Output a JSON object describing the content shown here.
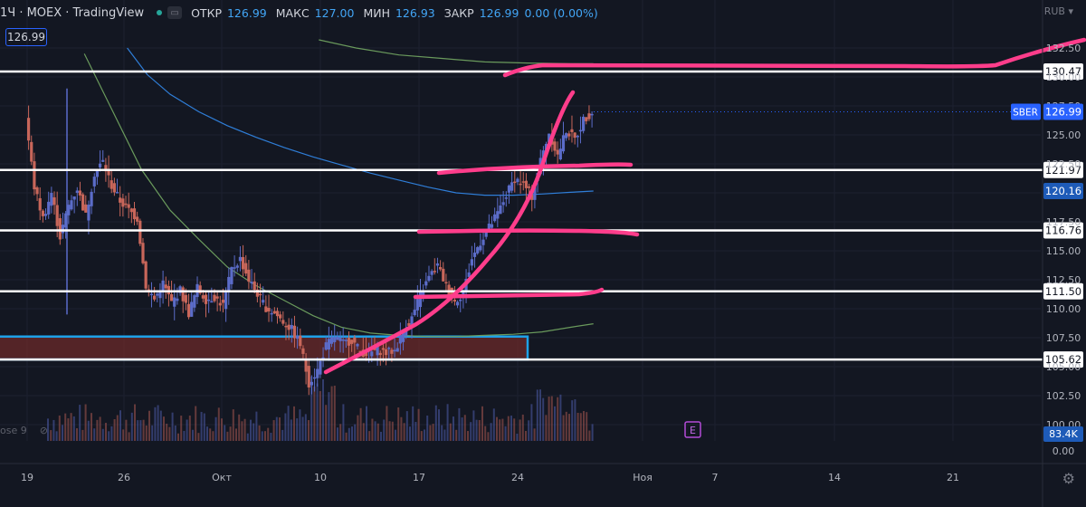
{
  "header": {
    "symbol_fragment": "1Ч · MOEX · TradingView",
    "open_label": "ОТКР",
    "open": "126.99",
    "high_label": "МАКС",
    "high": "127.00",
    "low_label": "МИН",
    "low": "126.93",
    "close_label": "ЗАКР",
    "close": "126.99",
    "change": "0.00 (0.00%)",
    "current_price": "126.99",
    "currency": "RUB"
  },
  "volume_label": "ose 9",
  "colors": {
    "background": "#131722",
    "up": "#5b6cc9",
    "down": "#c8665a",
    "ma_blue": "#2f7ed8",
    "ma_green": "#6a9a5c",
    "level_line": "#ffffff",
    "drawing_pink": "#ff3d8b",
    "zone_border": "#1ea2e8",
    "zone_fill": "#6b2a2a"
  },
  "chart_data": {
    "type": "line",
    "title": "",
    "y_axis": {
      "ylim": [
        100,
        132
      ],
      "ticks": [
        100.0,
        102.5,
        105.0,
        107.5,
        110.0,
        112.5,
        115.0,
        117.5,
        120.0,
        122.5,
        125.0,
        127.5,
        130.0,
        132.5
      ],
      "tick_labels": [
        "100.00",
        "102.50",
        "105.00",
        "107.50",
        "110.00",
        "112.50",
        "115.00",
        "117.50",
        "120.00",
        "122.50",
        "125.00",
        "127.50",
        "130.00",
        "132.50"
      ],
      "volume_zero_label": "0.00"
    },
    "x_axis": {
      "tick_labels": [
        "19",
        "26",
        "Окт",
        "10",
        "17",
        "24",
        "Ноя",
        "7",
        "14",
        "21"
      ]
    },
    "price_series": [
      {
        "t": 0.0,
        "v": 126.5
      },
      {
        "t": 0.3,
        "v": 120.5
      },
      {
        "t": 0.6,
        "v": 117.8
      },
      {
        "t": 0.9,
        "v": 120.0
      },
      {
        "t": 1.2,
        "v": 116.2
      },
      {
        "t": 1.5,
        "v": 118.9
      },
      {
        "t": 1.8,
        "v": 120.4
      },
      {
        "t": 2.1,
        "v": 118.0
      },
      {
        "t": 2.4,
        "v": 121.7
      },
      {
        "t": 2.7,
        "v": 122.7
      },
      {
        "t": 3.0,
        "v": 120.6
      },
      {
        "t": 3.3,
        "v": 119.3
      },
      {
        "t": 3.6,
        "v": 118.5
      },
      {
        "t": 3.9,
        "v": 117.8
      },
      {
        "t": 4.2,
        "v": 112.0
      },
      {
        "t": 4.5,
        "v": 110.8
      },
      {
        "t": 4.8,
        "v": 112.2
      },
      {
        "t": 5.1,
        "v": 110.5
      },
      {
        "t": 5.4,
        "v": 111.6
      },
      {
        "t": 5.7,
        "v": 109.6
      },
      {
        "t": 6.0,
        "v": 111.8
      },
      {
        "t": 6.3,
        "v": 110.8
      },
      {
        "t": 6.6,
        "v": 111.0
      },
      {
        "t": 6.9,
        "v": 110.3
      },
      {
        "t": 7.2,
        "v": 113.4
      },
      {
        "t": 7.5,
        "v": 114.3
      },
      {
        "t": 7.8,
        "v": 112.5
      },
      {
        "t": 8.1,
        "v": 111.3
      },
      {
        "t": 8.4,
        "v": 110.1
      },
      {
        "t": 8.7,
        "v": 109.6
      },
      {
        "t": 9.0,
        "v": 108.9
      },
      {
        "t": 9.3,
        "v": 108.2
      },
      {
        "t": 9.6,
        "v": 106.9
      },
      {
        "t": 9.9,
        "v": 103.6
      },
      {
        "t": 10.2,
        "v": 104.7
      },
      {
        "t": 10.5,
        "v": 106.8
      },
      {
        "t": 10.8,
        "v": 107.6
      },
      {
        "t": 11.1,
        "v": 107.0
      },
      {
        "t": 11.4,
        "v": 107.3
      },
      {
        "t": 11.7,
        "v": 106.3
      },
      {
        "t": 12.0,
        "v": 106.1
      },
      {
        "t": 12.3,
        "v": 106.5
      },
      {
        "t": 12.6,
        "v": 106.2
      },
      {
        "t": 12.9,
        "v": 106.4
      },
      {
        "t": 13.2,
        "v": 108.0
      },
      {
        "t": 13.5,
        "v": 109.2
      },
      {
        "t": 13.8,
        "v": 111.2
      },
      {
        "t": 14.1,
        "v": 112.7
      },
      {
        "t": 14.4,
        "v": 113.7
      },
      {
        "t": 14.7,
        "v": 112.0
      },
      {
        "t": 15.0,
        "v": 110.6
      },
      {
        "t": 15.3,
        "v": 111.4
      },
      {
        "t": 15.6,
        "v": 114.3
      },
      {
        "t": 15.9,
        "v": 115.8
      },
      {
        "t": 16.2,
        "v": 117.0
      },
      {
        "t": 16.5,
        "v": 118.2
      },
      {
        "t": 16.8,
        "v": 119.8
      },
      {
        "t": 17.1,
        "v": 121.3
      },
      {
        "t": 17.4,
        "v": 120.7
      },
      {
        "t": 17.7,
        "v": 119.7
      },
      {
        "t": 18.0,
        "v": 122.8
      },
      {
        "t": 18.3,
        "v": 125.2
      },
      {
        "t": 18.6,
        "v": 123.2
      },
      {
        "t": 18.9,
        "v": 125.4
      },
      {
        "t": 19.2,
        "v": 124.6
      },
      {
        "t": 19.5,
        "v": 126.3
      },
      {
        "t": 19.8,
        "v": 126.99
      }
    ],
    "ma_blue": [
      {
        "t": 3.5,
        "v": 132.5
      },
      {
        "t": 4.2,
        "v": 130.2
      },
      {
        "t": 5.0,
        "v": 128.5
      },
      {
        "t": 6.0,
        "v": 127.0
      },
      {
        "t": 7.0,
        "v": 125.8
      },
      {
        "t": 8.0,
        "v": 124.8
      },
      {
        "t": 9.0,
        "v": 123.9
      },
      {
        "t": 10.0,
        "v": 123.1
      },
      {
        "t": 11.0,
        "v": 122.4
      },
      {
        "t": 12.0,
        "v": 121.7
      },
      {
        "t": 13.0,
        "v": 121.1
      },
      {
        "t": 14.0,
        "v": 120.5
      },
      {
        "t": 15.0,
        "v": 120.0
      },
      {
        "t": 16.0,
        "v": 119.8
      },
      {
        "t": 17.0,
        "v": 119.8
      },
      {
        "t": 18.0,
        "v": 119.9
      },
      {
        "t": 19.0,
        "v": 120.05
      },
      {
        "t": 19.8,
        "v": 120.16
      }
    ],
    "ma_green_long": [
      {
        "t": 10.2,
        "v": 133.2
      },
      {
        "t": 11.5,
        "v": 132.5
      },
      {
        "t": 13.0,
        "v": 131.9
      },
      {
        "t": 14.5,
        "v": 131.6
      },
      {
        "t": 16.0,
        "v": 131.3
      },
      {
        "t": 17.5,
        "v": 131.2
      },
      {
        "t": 19.0,
        "v": 131.15
      },
      {
        "t": 19.8,
        "v": 131.15
      }
    ],
    "ma_green_short": [
      {
        "t": 2.0,
        "v": 132.0
      },
      {
        "t": 3.0,
        "v": 127.0
      },
      {
        "t": 4.0,
        "v": 122.0
      },
      {
        "t": 5.0,
        "v": 118.5
      },
      {
        "t": 6.0,
        "v": 116.0
      },
      {
        "t": 7.0,
        "v": 113.6
      },
      {
        "t": 8.0,
        "v": 112.0
      },
      {
        "t": 9.0,
        "v": 110.7
      },
      {
        "t": 10.0,
        "v": 109.4
      },
      {
        "t": 11.0,
        "v": 108.4
      },
      {
        "t": 12.0,
        "v": 107.9
      },
      {
        "t": 13.0,
        "v": 107.7
      },
      {
        "t": 14.0,
        "v": 107.6
      },
      {
        "t": 15.0,
        "v": 107.6
      },
      {
        "t": 16.0,
        "v": 107.7
      },
      {
        "t": 17.0,
        "v": 107.8
      },
      {
        "t": 18.0,
        "v": 108.0
      },
      {
        "t": 19.0,
        "v": 108.4
      },
      {
        "t": 19.8,
        "v": 108.7
      }
    ],
    "levels": [
      {
        "value": 130.47,
        "label": "130.47"
      },
      {
        "value": 121.97,
        "label": "121.97"
      },
      {
        "value": 116.76,
        "label": "116.76"
      },
      {
        "value": 111.5,
        "label": "111.50"
      },
      {
        "value": 105.62,
        "label": "105.62"
      }
    ],
    "price_tags": [
      {
        "value": 126.99,
        "label": "126.99",
        "symbol": "SBER",
        "color": "#2962ff"
      },
      {
        "value": 120.16,
        "label": "120.16",
        "color": "#1e5bb8"
      }
    ],
    "volume_tag": {
      "label": "83.4K",
      "color": "#1e5bb8"
    },
    "zone": {
      "top": 107.6,
      "bottom": 105.62
    },
    "event_marker": "E"
  }
}
